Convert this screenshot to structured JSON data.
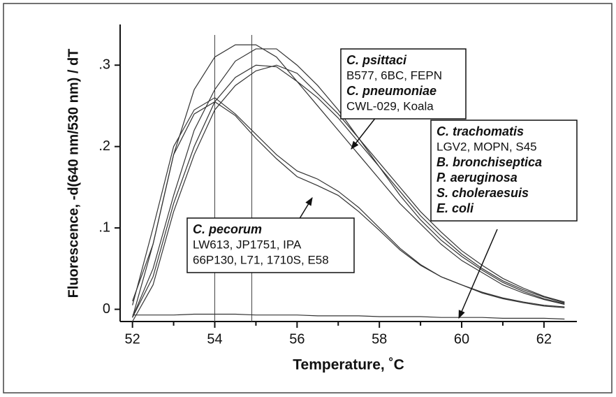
{
  "chart_data": {
    "type": "line",
    "xlabel": "Temperature, ˚C",
    "ylabel": "Fluorescence, -d(640 nm/530 nm) / dT",
    "xlim": [
      51.7,
      62.8
    ],
    "ylim": [
      -0.015,
      0.35
    ],
    "xticks": [
      52,
      54,
      56,
      58,
      60,
      62
    ],
    "xminor": [
      53,
      55,
      57,
      59,
      61
    ],
    "yticks": [
      {
        "value": 0.3,
        "label": ".3"
      },
      {
        "value": 0.2,
        "label": ".2"
      },
      {
        "value": 0.1,
        "label": ".1"
      },
      0
    ],
    "vlines": [
      54,
      54.9
    ],
    "x": [
      52,
      52.5,
      53,
      53.5,
      54,
      54.5,
      55,
      55.5,
      56,
      56.5,
      57,
      57.5,
      58,
      58.5,
      59,
      59.5,
      60,
      60.5,
      61,
      61.5,
      62,
      62.5
    ],
    "series": [
      {
        "color": "#333333",
        "values": [
          0.01,
          0.08,
          0.19,
          0.27,
          0.31,
          0.325,
          0.325,
          0.31,
          0.28,
          0.25,
          0.22,
          0.19,
          0.16,
          0.13,
          0.105,
          0.08,
          0.06,
          0.045,
          0.03,
          0.02,
          0.012,
          0.006
        ]
      },
      {
        "color": "#333333",
        "values": [
          -0.01,
          0.05,
          0.14,
          0.22,
          0.27,
          0.305,
          0.32,
          0.32,
          0.3,
          0.275,
          0.245,
          0.21,
          0.175,
          0.14,
          0.11,
          0.085,
          0.065,
          0.048,
          0.033,
          0.022,
          0.013,
          0.007
        ]
      },
      {
        "color": "#333333",
        "values": [
          -0.01,
          0.04,
          0.13,
          0.2,
          0.255,
          0.285,
          0.3,
          0.298,
          0.28,
          0.26,
          0.235,
          0.205,
          0.175,
          0.145,
          0.115,
          0.09,
          0.068,
          0.05,
          0.035,
          0.024,
          0.015,
          0.008
        ]
      },
      {
        "color": "#333333",
        "values": [
          -0.015,
          0.03,
          0.12,
          0.19,
          0.245,
          0.275,
          0.293,
          0.3,
          0.29,
          0.265,
          0.24,
          0.21,
          0.18,
          0.15,
          0.12,
          0.095,
          0.072,
          0.054,
          0.038,
          0.026,
          0.016,
          0.009
        ]
      },
      {
        "color": "#333333",
        "values": [
          0.005,
          0.1,
          0.2,
          0.245,
          0.26,
          0.24,
          0.215,
          0.19,
          0.17,
          0.16,
          0.145,
          0.125,
          0.1,
          0.075,
          0.055,
          0.04,
          0.03,
          0.02,
          0.013,
          0.008,
          0.004,
          0.002
        ]
      },
      {
        "color": "#333333",
        "values": [
          -0.01,
          0.08,
          0.19,
          0.24,
          0.255,
          0.238,
          0.21,
          0.185,
          0.163,
          0.152,
          0.14,
          0.12,
          0.097,
          0.073,
          0.054,
          0.04,
          0.03,
          0.021,
          0.014,
          0.009,
          0.005,
          0.003
        ]
      },
      {
        "color": "#333333",
        "values": [
          -0.007,
          -0.007,
          -0.007,
          -0.006,
          -0.006,
          -0.006,
          -0.007,
          -0.007,
          -0.007,
          -0.008,
          -0.008,
          -0.008,
          -0.009,
          -0.009,
          -0.009,
          -0.01,
          -0.01,
          -0.01,
          -0.011,
          -0.011,
          -0.011,
          -0.012
        ]
      }
    ],
    "annotations": [
      {
        "lines": [
          "C. psittaci",
          "B577, 6BC, FEPN",
          "C. pneumoniae",
          "CWL-029, Koala"
        ],
        "bold": [
          0,
          2
        ]
      },
      {
        "lines": [
          "C. trachomatis",
          "LGV2, MOPN, S45",
          "B. bronchiseptica",
          "P. aeruginosa",
          "S. choleraesuis",
          "E. coli"
        ],
        "bold": [
          0,
          2,
          3,
          4,
          5
        ]
      },
      {
        "lines": [
          "C. pecorum",
          "LW613, JP1751, IPA",
          "66P130, L71, 1710S, E58"
        ],
        "bold": [
          0
        ]
      }
    ]
  }
}
